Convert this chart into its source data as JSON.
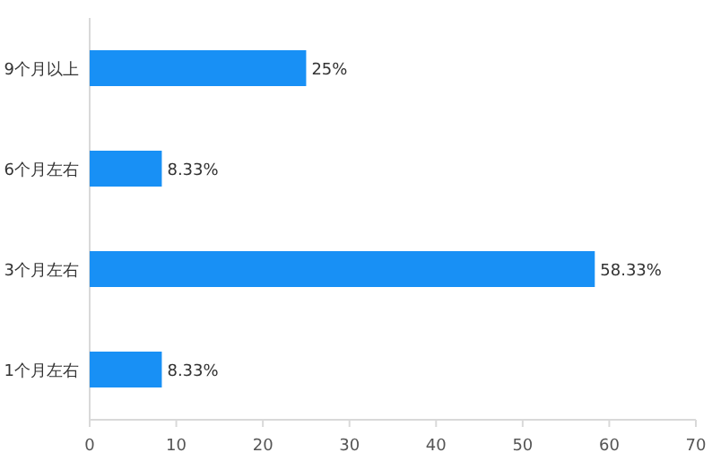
{
  "chart_data": {
    "type": "bar",
    "orientation": "horizontal",
    "categories": [
      "9个月以上",
      "6个月左右",
      "3个月左右",
      "1个月左右"
    ],
    "values": [
      25,
      8.33,
      58.33,
      8.33
    ],
    "value_labels": [
      "25%",
      "8.33%",
      "58.33%",
      "8.33%"
    ],
    "color": "#1890f5",
    "xlim": [
      0,
      70
    ],
    "xticks": [
      0,
      10,
      20,
      30,
      40,
      50,
      60,
      70
    ]
  }
}
